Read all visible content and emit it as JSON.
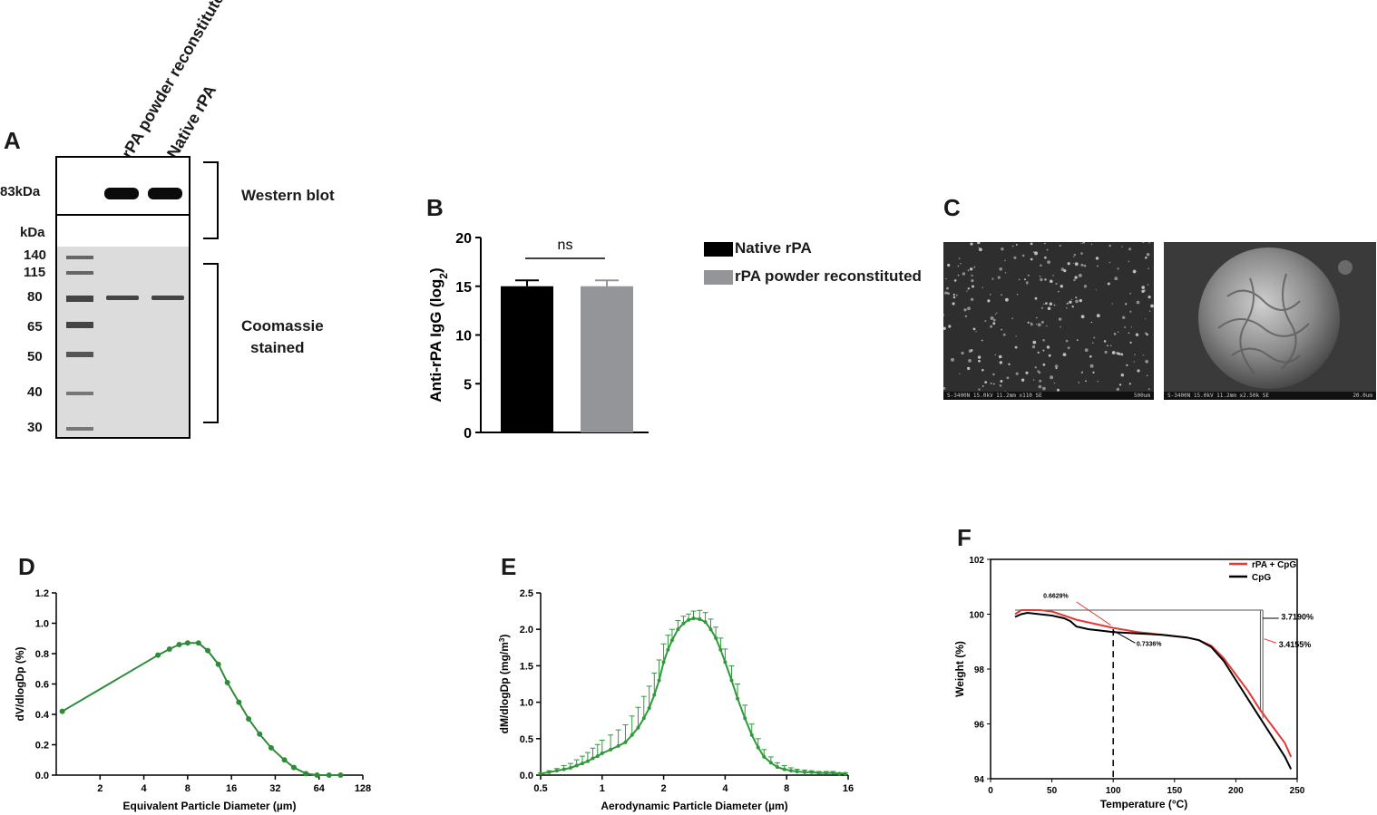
{
  "panels": {
    "A": {
      "label": "A",
      "lanes": [
        "rPA powder reconstituted",
        "Native rPA"
      ],
      "wb_marker": "83kDa",
      "kda_header": "kDa",
      "ladder": [
        "140",
        "115",
        "80",
        "65",
        "50",
        "40",
        "30"
      ],
      "western_label": "Western blot",
      "coomassie_label_line1": "Coomassie",
      "coomassie_label_line2": "stained"
    },
    "B": {
      "label": "B",
      "significance": "ns",
      "legend": [
        "Native rPA",
        "rPA powder reconstituted"
      ],
      "colors": [
        "#000000",
        "#939598"
      ]
    },
    "C": {
      "label": "C",
      "sem_left_info": "S-3400N 15.0kV 11.2mm x110 SE",
      "sem_left_scale": "500um",
      "sem_right_info": "S-3400N 15.0kV 11.2mm x2.50k SE",
      "sem_right_scale": "20.0um"
    },
    "D": {
      "label": "D"
    },
    "E": {
      "label": "E"
    },
    "F": {
      "label": "F",
      "annotations": [
        "0.6629%",
        "0.7336%",
        "3.7190%",
        "3.4155%"
      ],
      "legend": [
        "rPA + CpG",
        "CpG"
      ],
      "colors": [
        "#e53935",
        "#000000"
      ]
    }
  },
  "chart_data": [
    {
      "id": "B",
      "type": "bar",
      "categories": [
        "Native rPA",
        "rPA powder reconstituted"
      ],
      "values": [
        15.0,
        15.0
      ],
      "errors": [
        0.6,
        0.6
      ],
      "ylabel": "Anti-rPA IgG  (log2)",
      "ylim": [
        0,
        20
      ],
      "yticks": [
        0,
        5,
        10,
        15,
        20
      ]
    },
    {
      "id": "D",
      "type": "line",
      "xlabel": "Equivalent Particle Diameter (µm)",
      "ylabel": "dV/dlogDp (%)",
      "xscale": "log2",
      "xlim": [
        1,
        128
      ],
      "ylim": [
        0,
        1.2
      ],
      "xticks": [
        2,
        4,
        8,
        16,
        32,
        64,
        128
      ],
      "yticks": [
        0.0,
        0.2,
        0.4,
        0.6,
        0.8,
        1.0,
        1.2
      ],
      "x": [
        1.1,
        5,
        6,
        7,
        8,
        9.5,
        11,
        13,
        15,
        18,
        21,
        25,
        30,
        37,
        43,
        52,
        62,
        75,
        90
      ],
      "y": [
        0.42,
        0.79,
        0.83,
        0.86,
        0.87,
        0.87,
        0.82,
        0.73,
        0.61,
        0.48,
        0.37,
        0.27,
        0.18,
        0.1,
        0.05,
        0.01,
        0.0,
        0.0,
        0.0
      ]
    },
    {
      "id": "E",
      "type": "line",
      "xlabel": "Aerodynamic Particle Diameter (µm)",
      "ylabel": "dM/dlogDp (mg/m3)",
      "xscale": "log2",
      "xlim": [
        0.5,
        16
      ],
      "ylim": [
        0,
        2.5
      ],
      "xticks": [
        0.5,
        1,
        2,
        4,
        8,
        16
      ],
      "yticks": [
        0.0,
        0.5,
        1.0,
        1.5,
        2.0,
        2.5
      ],
      "x": [
        0.5,
        0.55,
        0.6,
        0.65,
        0.7,
        0.75,
        0.8,
        0.85,
        0.9,
        0.95,
        1.0,
        1.1,
        1.2,
        1.3,
        1.4,
        1.5,
        1.6,
        1.7,
        1.8,
        1.9,
        2.0,
        2.1,
        2.2,
        2.35,
        2.5,
        2.65,
        2.8,
        3.0,
        3.2,
        3.4,
        3.6,
        3.8,
        4.0,
        4.3,
        4.6,
        5.0,
        5.4,
        5.8,
        6.2,
        6.7,
        7.2,
        7.8,
        8.4,
        9.0,
        9.8,
        10.6,
        11.5,
        12.5,
        13.5,
        14.5,
        15.5
      ],
      "y": [
        0.02,
        0.04,
        0.06,
        0.08,
        0.1,
        0.13,
        0.16,
        0.19,
        0.23,
        0.26,
        0.3,
        0.35,
        0.4,
        0.45,
        0.55,
        0.65,
        0.78,
        0.92,
        1.1,
        1.3,
        1.55,
        1.72,
        1.85,
        2.0,
        2.08,
        2.13,
        2.15,
        2.14,
        2.1,
        2.0,
        1.88,
        1.72,
        1.55,
        1.3,
        1.05,
        0.78,
        0.55,
        0.38,
        0.25,
        0.17,
        0.11,
        0.08,
        0.06,
        0.05,
        0.04,
        0.04,
        0.03,
        0.03,
        0.03,
        0.02,
        0.02
      ],
      "errors": [
        0.01,
        0.02,
        0.03,
        0.05,
        0.06,
        0.08,
        0.1,
        0.12,
        0.14,
        0.16,
        0.18,
        0.2,
        0.22,
        0.24,
        0.26,
        0.28,
        0.3,
        0.3,
        0.3,
        0.28,
        0.25,
        0.2,
        0.15,
        0.12,
        0.1,
        0.08,
        0.1,
        0.12,
        0.13,
        0.14,
        0.15,
        0.16,
        0.18,
        0.2,
        0.2,
        0.18,
        0.15,
        0.12,
        0.1,
        0.08,
        0.06,
        0.05,
        0.04,
        0.03,
        0.03,
        0.02,
        0.02,
        0.02,
        0.02,
        0.01,
        0.01
      ]
    },
    {
      "id": "F",
      "type": "line",
      "xlabel": "Temperature (°C)",
      "ylabel": "Weight (%)",
      "xlim": [
        0,
        250
      ],
      "ylim": [
        94,
        102
      ],
      "xticks": [
        0,
        50,
        100,
        150,
        200,
        250
      ],
      "yticks": [
        94,
        96,
        98,
        100,
        102
      ],
      "series": [
        {
          "name": "rPA + CpG",
          "x": [
            20,
            25,
            30,
            40,
            50,
            60,
            70,
            80,
            90,
            100,
            120,
            140,
            160,
            170,
            180,
            190,
            200,
            210,
            220,
            230,
            240,
            245
          ],
          "y": [
            100.0,
            100.15,
            100.15,
            100.15,
            100.1,
            99.95,
            99.8,
            99.7,
            99.6,
            99.5,
            99.35,
            99.25,
            99.15,
            99.05,
            98.85,
            98.4,
            97.8,
            97.2,
            96.5,
            95.9,
            95.3,
            94.8
          ]
        },
        {
          "name": "CpG",
          "x": [
            20,
            25,
            30,
            40,
            50,
            60,
            65,
            70,
            80,
            90,
            100,
            120,
            140,
            160,
            170,
            180,
            190,
            200,
            210,
            220,
            230,
            240,
            245
          ],
          "y": [
            99.9,
            100.0,
            100.05,
            100.0,
            99.95,
            99.85,
            99.75,
            99.55,
            99.45,
            99.4,
            99.35,
            99.3,
            99.25,
            99.15,
            99.05,
            98.8,
            98.3,
            97.6,
            96.9,
            96.2,
            95.5,
            94.8,
            94.35
          ]
        }
      ]
    }
  ]
}
